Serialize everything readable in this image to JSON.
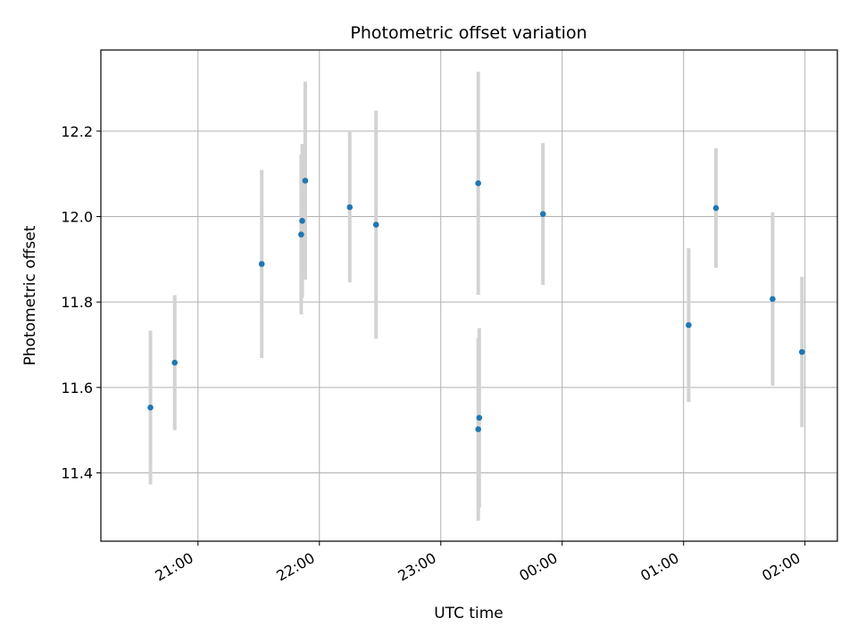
{
  "chart_data": {
    "type": "scatter",
    "title": "Photometric offset variation",
    "xlabel": "UTC time",
    "ylabel": "Photometric offset",
    "x_ticks": [
      "21:00",
      "22:00",
      "23:00",
      "00:00",
      "01:00",
      "02:00"
    ],
    "x_tick_minutes": [
      1260,
      1320,
      1380,
      1440,
      1500,
      1560
    ],
    "y_ticks": [
      11.4,
      11.6,
      11.8,
      12.0,
      12.2
    ],
    "xlim_minutes": [
      1212,
      1576
    ],
    "ylim": [
      11.24,
      12.39
    ],
    "grid": true,
    "colors": {
      "marker": "#1f77b4",
      "errorbar": "#d3d3d3",
      "grid": "#b0b0b0"
    },
    "points": [
      {
        "t": 1236.5,
        "y": 11.553,
        "err": 0.18
      },
      {
        "t": 1248.5,
        "y": 11.658,
        "err": 0.158
      },
      {
        "t": 1291.5,
        "y": 11.889,
        "err": 0.22
      },
      {
        "t": 1311.0,
        "y": 11.958,
        "err": 0.187
      },
      {
        "t": 1311.5,
        "y": 11.99,
        "err": 0.18
      },
      {
        "t": 1313.0,
        "y": 12.084,
        "err": 0.232
      },
      {
        "t": 1335.0,
        "y": 12.022,
        "err": 0.176
      },
      {
        "t": 1348.0,
        "y": 11.981,
        "err": 0.267
      },
      {
        "t": 1398.5,
        "y": 12.078,
        "err": 0.261
      },
      {
        "t": 1399.0,
        "y": 11.529,
        "err": 0.21
      },
      {
        "t": 1398.5,
        "y": 11.502,
        "err": 0.214
      },
      {
        "t": 1430.5,
        "y": 12.006,
        "err": 0.166
      },
      {
        "t": 1502.5,
        "y": 11.746,
        "err": 0.18
      },
      {
        "t": 1516.0,
        "y": 12.02,
        "err": 0.14
      },
      {
        "t": 1544.0,
        "y": 11.807,
        "err": 0.203
      },
      {
        "t": 1558.5,
        "y": 11.683,
        "err": 0.176
      }
    ]
  }
}
